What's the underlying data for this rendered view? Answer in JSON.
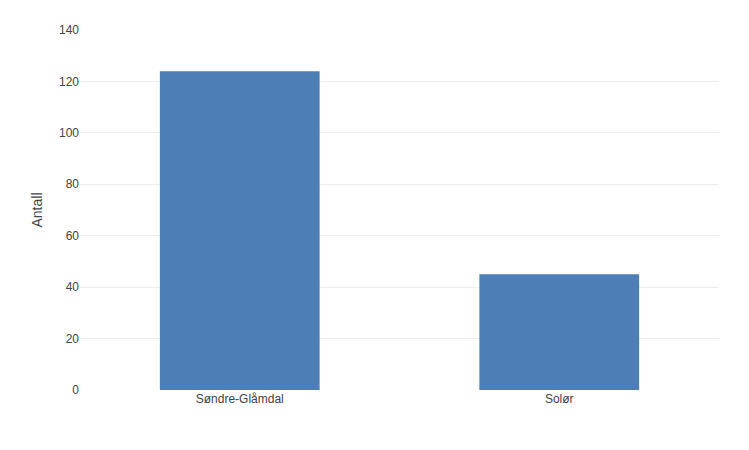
{
  "chart_data": {
    "type": "bar",
    "ylabel": "Antall",
    "categories": [
      "Søndre-Glåmdal",
      "Solør"
    ],
    "values": [
      124,
      45
    ],
    "color": "#4d7eb5",
    "ylim": [
      0,
      140
    ],
    "yticks": [
      0,
      20,
      40,
      60,
      80,
      100,
      120,
      140
    ],
    "grid": true
  }
}
